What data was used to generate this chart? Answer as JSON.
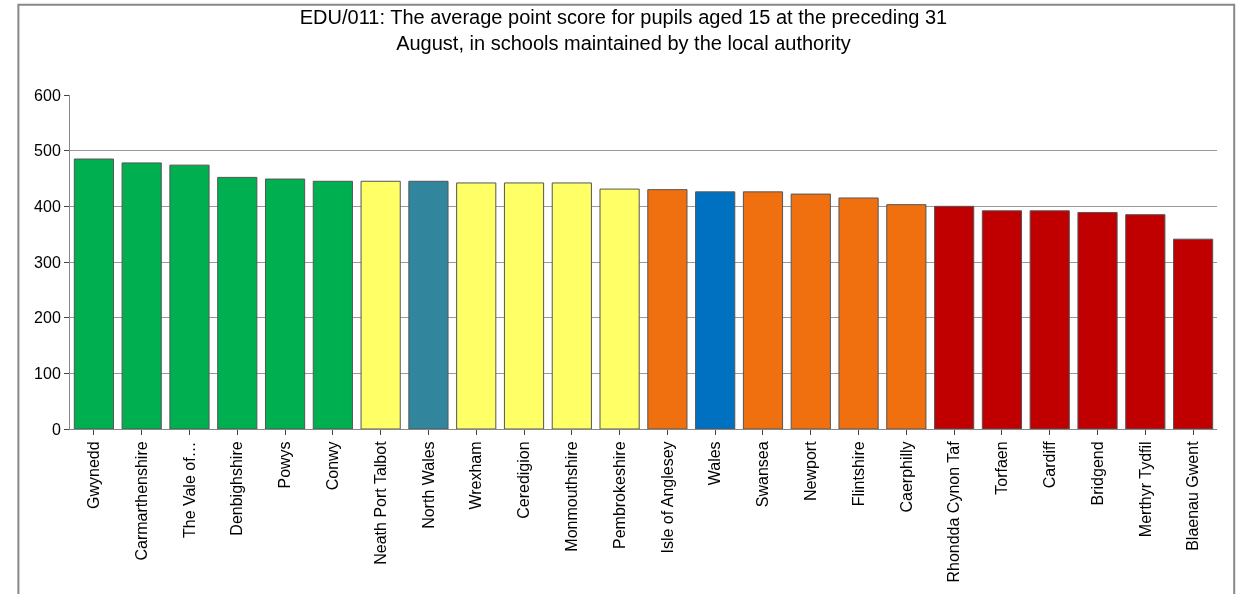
{
  "chart_data": {
    "type": "bar",
    "title": "EDU/011: The average point score for pupils aged 15 at the preceding 31\nAugust, in schools maintained by the local authority",
    "categories": [
      "Gwynedd",
      "Carmarthenshire",
      "The Vale of…",
      "Denbighshire",
      "Powys",
      "Conwy",
      "Neath Port Talbot",
      "North Wales",
      "Wrexham",
      "Ceredigion",
      "Monmouthshire",
      "Pembrokeshire",
      "Isle of Anglesey",
      "Wales",
      "Swansea",
      "Newport",
      "Flintshire",
      "Caerphilly",
      "Rhondda Cynon Taf",
      "Torfaen",
      "Cardiff",
      "Bridgend",
      "Merthyr Tydfil",
      "Blaenau Gwent"
    ],
    "values": [
      485,
      478,
      474,
      452,
      449,
      445,
      445,
      445,
      442,
      442,
      442,
      431,
      430,
      426,
      426,
      422,
      415,
      403,
      400,
      392,
      392,
      389,
      385,
      341
    ],
    "colors": [
      "#00b050",
      "#00b050",
      "#00b050",
      "#00b050",
      "#00b050",
      "#00b050",
      "#ffff66",
      "#31859c",
      "#ffff66",
      "#ffff66",
      "#ffff66",
      "#ffff66",
      "#f07010",
      "#0070c0",
      "#f07010",
      "#f07010",
      "#f07010",
      "#f07010",
      "#c00000",
      "#c00000",
      "#c00000",
      "#c00000",
      "#c00000",
      "#c00000"
    ],
    "ylim": [
      0,
      600
    ],
    "yticks": [
      0,
      100,
      200,
      300,
      400,
      500,
      600
    ],
    "grid": "y",
    "legend": false
  }
}
